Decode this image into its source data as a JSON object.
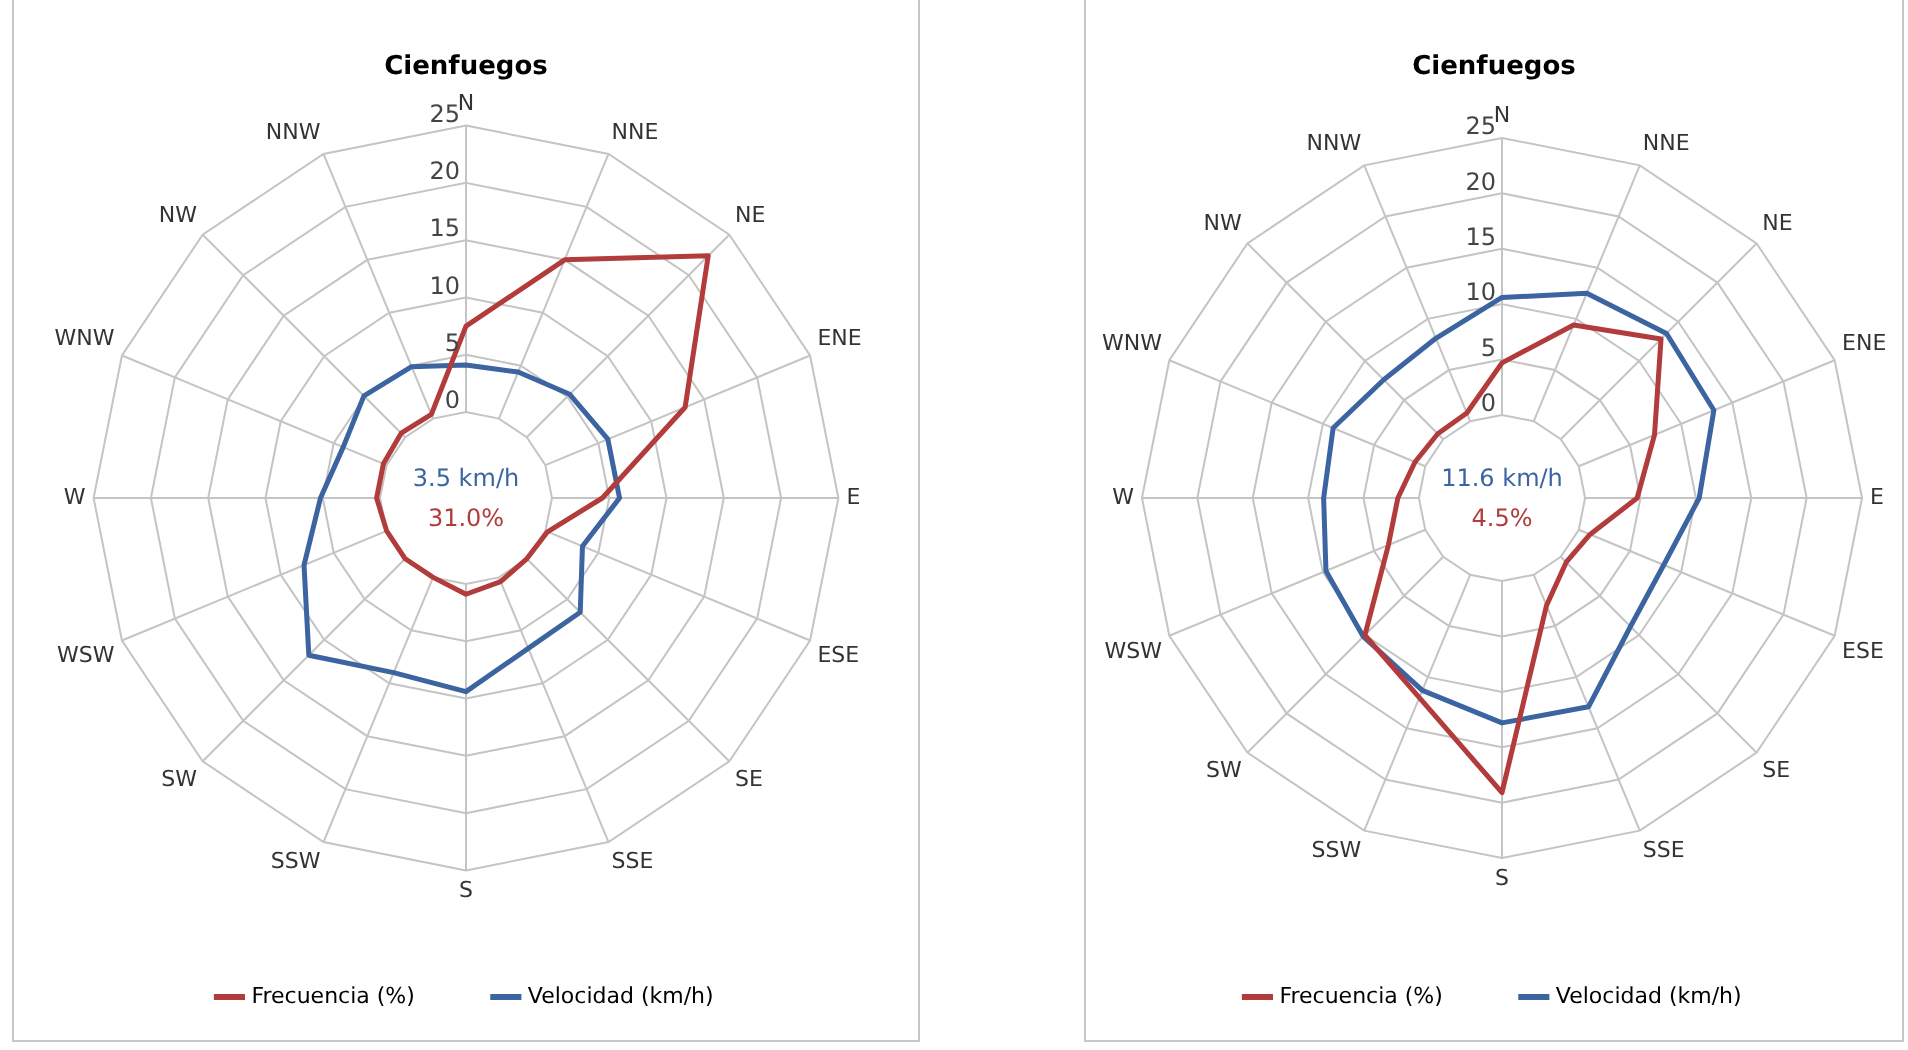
{
  "chart_data": [
    {
      "type": "radar",
      "title": "Cienfuegos",
      "categories": [
        "N",
        "NNE",
        "NE",
        "ENE",
        "E",
        "ESE",
        "SE",
        "SSE",
        "S",
        "SSW",
        "SW",
        "WSW",
        "W",
        "WNW",
        "NW",
        "NNW"
      ],
      "series": [
        {
          "name": "Frecuencia (%)",
          "color": "#b23b3b",
          "values": [
            7.5,
            15,
            22.4,
            13.2,
            4.4,
            0.2,
            0,
            0.4,
            0.9,
            0,
            0,
            0,
            0.3,
            0.3,
            0.5,
            0.4
          ]
        },
        {
          "name": "Velocidad (km/h)",
          "color": "#3b64a0",
          "values": [
            4.1,
            4.4,
            5.3,
            5.9,
            5.9,
            3.5,
            6.6,
            6.7,
            9.4,
            9,
            11.9,
            7.8,
            5.2,
            4.1,
            5.1,
            4.9
          ]
        }
      ],
      "ylim": [
        -7.5,
        25
      ],
      "yticks": [
        0,
        5,
        10,
        15,
        20,
        25
      ],
      "grid": true,
      "legend": "bottom",
      "marker": "none",
      "annotations": [
        "3.5 km/h",
        "31.0%"
      ]
    },
    {
      "type": "radar",
      "title": "Cienfuegos",
      "categories": [
        "N",
        "NNE",
        "NE",
        "ENE",
        "E",
        "ESE",
        "SE",
        "SSE",
        "S",
        "SSW",
        "SW",
        "WSW",
        "W",
        "WNW",
        "NW",
        "NNW"
      ],
      "series": [
        {
          "name": "Frecuencia (%)",
          "color": "#b23b3b",
          "values": [
            4.7,
            9.4,
            12.8,
            7.4,
            4.7,
            1.1,
            0.7,
            3,
            19.1,
            12,
            10,
            3.6,
            1.9,
            1,
            0.7,
            0.8
          ]
        },
        {
          "name": "Velocidad (km/h)",
          "color": "#3b64a0",
          "values": [
            10.6,
            12.5,
            13.5,
            13.2,
            10.3,
            8.3,
            8.9,
            12.9,
            12.8,
            11.3,
            10.2,
            9.7,
            8.6,
            9,
            7.6,
            8.1
          ]
        }
      ],
      "ylim": [
        -7.5,
        25
      ],
      "yticks": [
        0,
        5,
        10,
        15,
        20,
        25
      ],
      "grid": true,
      "legend": "bottom",
      "marker": "none",
      "annotations": [
        "11.6 km/h",
        "4.5%"
      ]
    }
  ]
}
